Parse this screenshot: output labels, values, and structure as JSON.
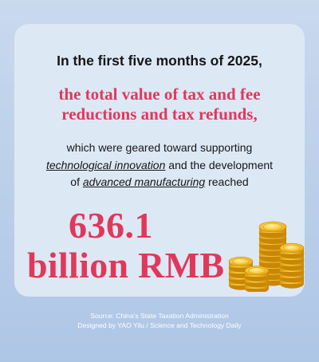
{
  "headline": "In the first five months of 2025,",
  "subhead": {
    "line1": "the total value of tax and fee",
    "line2": "reductions and tax refunds,"
  },
  "body": {
    "line1": "which were geared toward supporting",
    "line2_em": "technological innovation",
    "line2_rest": " and the development",
    "line3_pre": "of ",
    "line3_em": "advanced manufacturing",
    "line3_post": " reached"
  },
  "figure": {
    "value": "636.1",
    "unit": "billion RMB"
  },
  "credits": {
    "source": "Source: China's State Taxation Administration",
    "designer": "Designed by YAO Yilu / Science and Technology Daily"
  },
  "icons": {
    "illustration": "gold-coin-stacks-icon"
  },
  "colors": {
    "accent": "#e0385b",
    "text": "#161616",
    "card": "#dde8f5",
    "background": "#b9cfea",
    "coin": "#f3b91f"
  }
}
